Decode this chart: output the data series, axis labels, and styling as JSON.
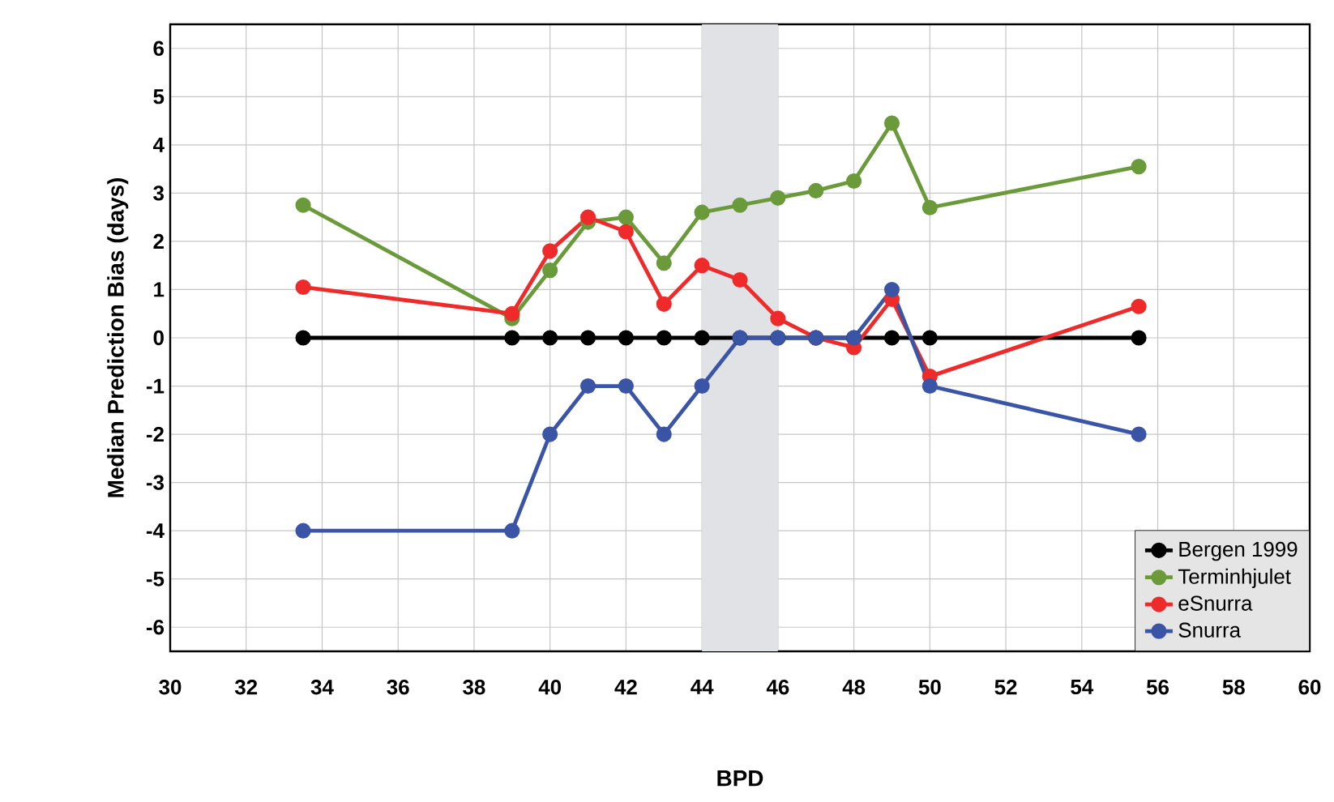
{
  "chart_data": {
    "type": "line",
    "xlabel": "BPD",
    "ylabel": "Median Prediction Bias (days)",
    "x": [
      33.5,
      39,
      40,
      41,
      42,
      43,
      44,
      45,
      46,
      47,
      48,
      49,
      50,
      55.5
    ],
    "series": [
      {
        "name": "Bergen 1999",
        "color": "#000000",
        "values": [
          0,
          0,
          0,
          0,
          0,
          0,
          0,
          0,
          0,
          0,
          0,
          0,
          0,
          0
        ]
      },
      {
        "name": "Terminhjulet",
        "color": "#6a9a3a",
        "values": [
          2.75,
          0.4,
          1.4,
          2.4,
          2.5,
          1.55,
          2.6,
          2.75,
          2.9,
          3.05,
          3.25,
          4.45,
          2.7,
          3.55
        ]
      },
      {
        "name": "eSnurra",
        "color": "#ee2a2a",
        "values": [
          1.05,
          0.5,
          1.8,
          2.5,
          2.2,
          0.7,
          1.5,
          1.2,
          0.4,
          0,
          -0.2,
          0.8,
          -0.8,
          0.65
        ]
      },
      {
        "name": "Snurra",
        "color": "#3a55a5",
        "values": [
          -4,
          -4,
          -2,
          -1,
          -1,
          -2,
          -1,
          0,
          0,
          0,
          0,
          1,
          -1,
          -2
        ]
      }
    ],
    "xlim": [
      30,
      60
    ],
    "xticks": [
      30,
      32,
      34,
      36,
      38,
      40,
      42,
      44,
      46,
      48,
      50,
      52,
      54,
      56,
      58,
      60
    ],
    "ylim": [
      -6.5,
      6.5
    ],
    "yticks": [
      -6,
      -5,
      -4,
      -3,
      -2,
      -1,
      0,
      1,
      2,
      3,
      4,
      5,
      6
    ],
    "bands": [
      {
        "axis": "x",
        "from": 44,
        "to": 46,
        "color": "#e1e2e6"
      }
    ],
    "grid": true,
    "legend": "bottom right",
    "marker": "circle",
    "line_style": "solid"
  }
}
